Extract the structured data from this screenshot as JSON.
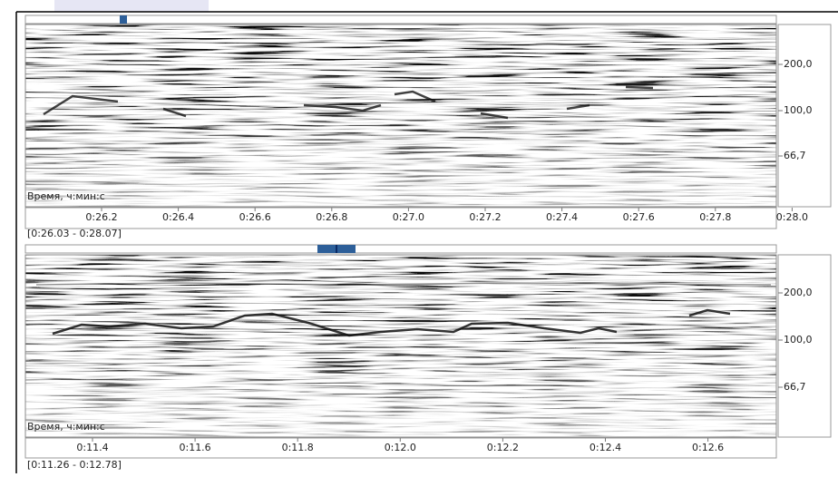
{
  "panels": [
    {
      "time_axis_label": "Время, ч:мин:с",
      "time_ticks": [
        "0:26.2",
        "0:26.4",
        "0:26.6",
        "0:26.8",
        "0:27.0",
        "0:27.2",
        "0:27.4",
        "0:27.6",
        "0:27.8",
        "0:28.0"
      ],
      "frequency_ticks": [
        "200,0",
        "100,0",
        "66,7"
      ],
      "range": "[0:26.03 - 0:28.07]"
    },
    {
      "time_axis_label": "Время, ч:мин:с",
      "time_ticks": [
        "0:11.4",
        "0:11.6",
        "0:11.8",
        "0:12.0",
        "0:12.2",
        "0:12.4",
        "0:12.6"
      ],
      "frequency_ticks": [
        "200,0",
        "100,0",
        "66,7"
      ],
      "range": "[0:11.26 - 0:12.78]"
    }
  ]
}
